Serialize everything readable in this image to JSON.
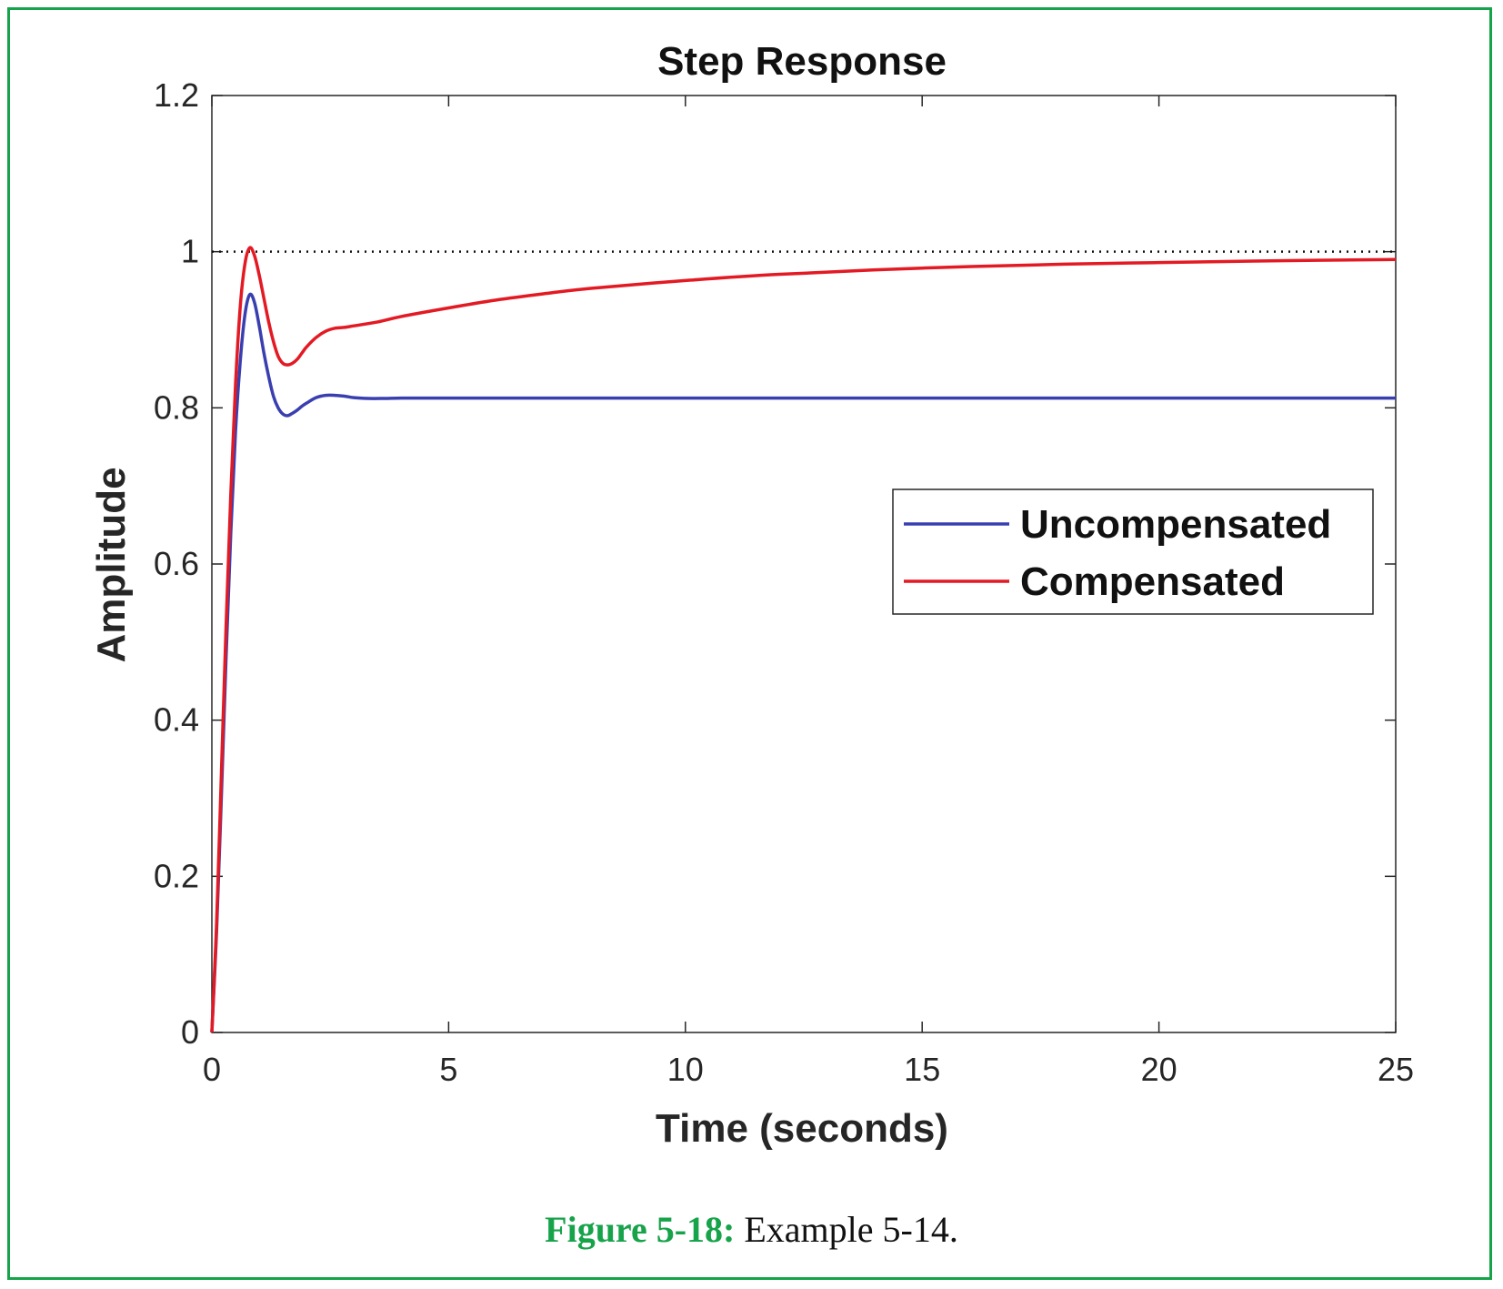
{
  "caption": {
    "figure_label": "Figure 5-18:",
    "text": "Example 5-14."
  },
  "colors": {
    "frame": "#16a34a",
    "uncompensated": "#3a3fb0",
    "compensated": "#e31a23",
    "reference": "#111111"
  },
  "chart_data": {
    "type": "line",
    "title": "Step Response",
    "xlabel": "Time (seconds)",
    "ylabel": "Amplitude",
    "xlim": [
      0,
      25
    ],
    "ylim": [
      0,
      1.2
    ],
    "xticks": [
      0,
      5,
      10,
      15,
      20,
      25
    ],
    "yticks": [
      0,
      0.2,
      0.4,
      0.6,
      0.8,
      1,
      1.2
    ],
    "xtick_labels": [
      "0",
      "5",
      "10",
      "15",
      "20",
      "25"
    ],
    "ytick_labels": [
      "0",
      "0.2",
      "0.4",
      "0.6",
      "0.8",
      "1",
      "1.2"
    ],
    "grid": false,
    "legend_position": "middle-right",
    "reference_line": {
      "y": 1,
      "style": "dotted"
    },
    "series": [
      {
        "name": "Uncompensated",
        "color": "#3a3fb0",
        "x": [
          0,
          0.1,
          0.2,
          0.3,
          0.4,
          0.5,
          0.6,
          0.7,
          0.8,
          0.9,
          1.0,
          1.1,
          1.2,
          1.3,
          1.4,
          1.5,
          1.6,
          1.7,
          1.8,
          1.9,
          2.0,
          2.2,
          2.4,
          2.6,
          2.8,
          3.0,
          3.3,
          3.6,
          4.0,
          4.5,
          5,
          7,
          10,
          15,
          20,
          25
        ],
        "y": [
          0,
          0.13,
          0.3,
          0.48,
          0.64,
          0.77,
          0.86,
          0.92,
          0.945,
          0.935,
          0.905,
          0.87,
          0.84,
          0.815,
          0.8,
          0.792,
          0.79,
          0.793,
          0.797,
          0.802,
          0.806,
          0.813,
          0.816,
          0.816,
          0.815,
          0.813,
          0.812,
          0.812,
          0.8125,
          0.8125,
          0.8125,
          0.8125,
          0.8125,
          0.8125,
          0.8125,
          0.8125
        ]
      },
      {
        "name": "Compensated",
        "color": "#e31a23",
        "x": [
          0,
          0.1,
          0.2,
          0.3,
          0.4,
          0.5,
          0.6,
          0.7,
          0.8,
          0.9,
          1.0,
          1.1,
          1.2,
          1.3,
          1.4,
          1.5,
          1.6,
          1.7,
          1.8,
          1.9,
          2.0,
          2.2,
          2.4,
          2.6,
          2.8,
          3.0,
          3.5,
          4,
          5,
          6,
          7,
          8,
          10,
          12,
          15,
          18,
          20,
          22,
          25
        ],
        "y": [
          0,
          0.14,
          0.33,
          0.52,
          0.69,
          0.83,
          0.93,
          0.985,
          1.005,
          0.995,
          0.97,
          0.94,
          0.91,
          0.885,
          0.866,
          0.857,
          0.855,
          0.857,
          0.862,
          0.87,
          0.878,
          0.89,
          0.898,
          0.902,
          0.903,
          0.905,
          0.91,
          0.917,
          0.928,
          0.938,
          0.946,
          0.953,
          0.963,
          0.971,
          0.979,
          0.984,
          0.986,
          0.988,
          0.99
        ]
      }
    ]
  }
}
